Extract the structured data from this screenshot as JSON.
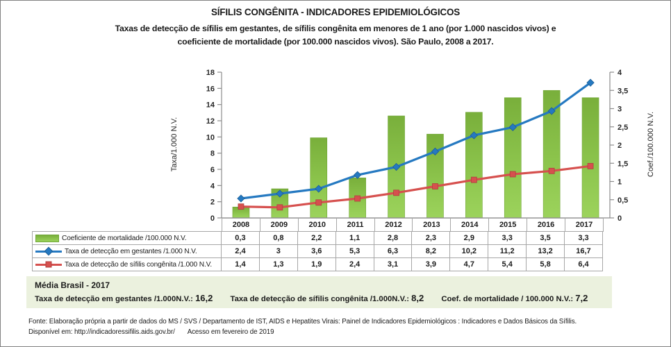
{
  "title": "SÍFILIS CONGÊNITA - INDICADORES EPIDEMIOLÓGICOS",
  "subtitle_line1": "Taxas de detecção de sífilis em gestantes, de sífilis congênita em menores de 1 ano (por 1.000 nascidos vivos) e",
  "subtitle_line2": "coeficiente de mortalidade (por 100.000 nascidos vivos). São Paulo, 2008 a 2017.",
  "chart_data": {
    "type": "combo",
    "categories": [
      "2008",
      "2009",
      "2010",
      "2011",
      "2012",
      "2013",
      "2014",
      "2015",
      "2016",
      "2017"
    ],
    "series": [
      {
        "name": "Coeficiente de mortalidade /100.000 N.V.",
        "type": "bar",
        "axis": "right",
        "color": "#8CC44C",
        "gradient_top": "#79AF3B",
        "gradient_bottom": "#9CD35C",
        "edge": "#70A637",
        "values": [
          0.3,
          0.8,
          2.2,
          1.1,
          2.8,
          2.3,
          2.9,
          3.3,
          3.5,
          3.3
        ]
      },
      {
        "name": "Taxa de detecção em gestantes /1.000 N.V.",
        "type": "line",
        "marker": "diamond",
        "axis": "left",
        "color": "#2579C1",
        "edge": "#1B5E96",
        "values": [
          2.4,
          3,
          3.6,
          5.3,
          6.3,
          8.2,
          10.2,
          11.2,
          13.2,
          16.7
        ]
      },
      {
        "name": "Taxa de detecção de sífilis congênita /1.000 N.V.",
        "type": "line",
        "marker": "square",
        "axis": "left",
        "color": "#D6504E",
        "edge": "#B03F3E",
        "values": [
          1.4,
          1.3,
          1.9,
          2.4,
          3.1,
          3.9,
          4.7,
          5.4,
          5.8,
          6.4
        ]
      }
    ],
    "left_axis": {
      "title": "Taxa/1.000 N.V.",
      "min": 0,
      "max": 18,
      "step": 2,
      "ticks": [
        "18",
        "16",
        "14",
        "12",
        "10",
        "8",
        "6",
        "4",
        "2",
        "0"
      ]
    },
    "right_axis": {
      "title": "Coef./100.000 N.V.",
      "min": 0,
      "max": 4,
      "step": 0.5,
      "ticks": [
        "4",
        "3,5",
        "3",
        "2,5",
        "2",
        "1,5",
        "1",
        "0,5",
        "0"
      ]
    },
    "grid": false,
    "legend_position": "table-left"
  },
  "table": {
    "rows": [
      {
        "label": "Coeficiente de mortalidade /100.000 N.V.",
        "swatch": "bar",
        "values": [
          "0,3",
          "0,8",
          "2,2",
          "1,1",
          "2,8",
          "2,3",
          "2,9",
          "3,3",
          "3,5",
          "3,3"
        ]
      },
      {
        "label": "Taxa de detecção em gestantes /1.000 N.V.",
        "swatch": "line-diamond",
        "values": [
          "2,4",
          "3",
          "3,6",
          "5,3",
          "6,3",
          "8,2",
          "10,2",
          "11,2",
          "13,2",
          "16,7"
        ]
      },
      {
        "label": "Taxa de detecção de sífilis congênita /1.000 N.V.",
        "swatch": "line-square",
        "values": [
          "1,4",
          "1,3",
          "1,9",
          "2,4",
          "3,1",
          "3,9",
          "4,7",
          "5,4",
          "5,8",
          "6,4"
        ]
      }
    ]
  },
  "media_box": {
    "title": "Média Brasil - 2017",
    "parts": [
      {
        "label": "Taxa de detecção em gestantes /1.000N.V.:",
        "value": "16,2"
      },
      {
        "label": "Taxa de detecção de sífilis congênita /1.000N.V.:",
        "value": "8,2"
      },
      {
        "label": "Coef. de mortalidade / 100.000 N.V.:",
        "value": "7,2"
      }
    ]
  },
  "footer": {
    "line1": "Fonte: Elaboração própria a partir de dados do MS / SVS / Departamento de IST, AIDS e Hepatites Virais: Painel de Indicadores Epidemiológicos : Indicadores e Dados Básicos da Sífilis.",
    "line2_parts": [
      "Disponível em: http://indicadoressifilis.aids.gov.br/",
      "Acesso em fevereiro de 2019"
    ]
  },
  "colors": {
    "bar_green": "#8CC44C",
    "line_blue": "#2579C1",
    "line_red": "#D6504E",
    "axis_gray": "#8C8C8C",
    "table_border": "#A6A6A6",
    "media_bg": "#EBF1DE"
  }
}
